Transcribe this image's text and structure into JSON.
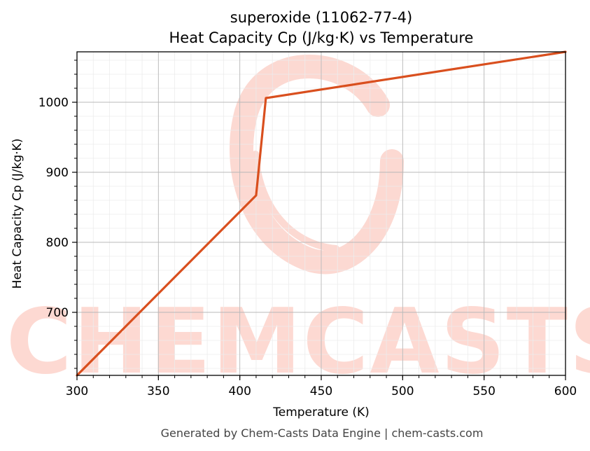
{
  "chart_data": {
    "type": "line",
    "title": "superoxide (11062-77-4)",
    "subtitle": "Heat Capacity Cp (J/kg·K) vs Temperature",
    "xlabel": "Temperature (K)",
    "ylabel": "Heat Capacity Cp (J/kg·K)",
    "xlim": [
      300,
      600
    ],
    "ylim": [
      610,
      1072
    ],
    "xticks": [
      300,
      350,
      400,
      450,
      500,
      550,
      600
    ],
    "yticks": [
      700,
      800,
      900,
      1000
    ],
    "grid": true,
    "series": [
      {
        "color": "#d94f1e",
        "x": [
          300,
          410,
          416,
          600
        ],
        "y": [
          610,
          867,
          1006,
          1072
        ]
      }
    ]
  },
  "watermark": {
    "text": "CHEMCASTS",
    "color": "#fdd9d2"
  },
  "footer": "Generated by Chem-Casts Data Engine | chem-casts.com"
}
